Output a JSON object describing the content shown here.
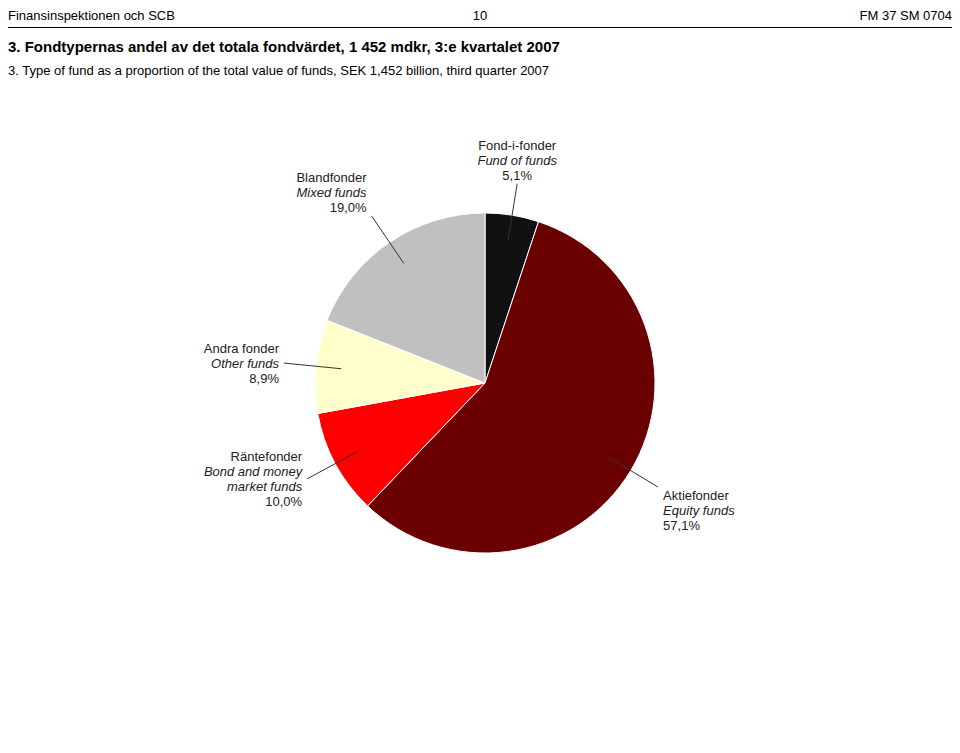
{
  "chart_data": {
    "type": "pie",
    "title": "3. Fondtypernas andel av det totala fondvärdet, 1 452 mdkr, 3:e kvartalet 2007",
    "subtitle": "3. Type of fund as a proportion of the total value of funds, SEK 1,452 billion, third quarter 2007",
    "annotations": [
      "Finansinspektionen och SCB",
      "10",
      "FM 37 SM 0704"
    ],
    "categories": [
      "Fond-i-fonder\nFund of funds",
      "Aktiefonder\nEquity funds",
      "Räntefonder\nBond and money\nmarket funds",
      "Andra fonder\nOther funds",
      "Blandfonder\nMixed funds"
    ],
    "values": [
      5.1,
      57.1,
      10.0,
      8.9,
      19.0
    ],
    "value_labels": [
      "5,1%",
      "57,1%",
      "10,0%",
      "8,9%",
      "19,0%"
    ],
    "colors": [
      "#111111",
      "#6B0000",
      "#FF0000",
      "#FFFFCC",
      "#C0C0C0"
    ],
    "data_labels": true
  }
}
